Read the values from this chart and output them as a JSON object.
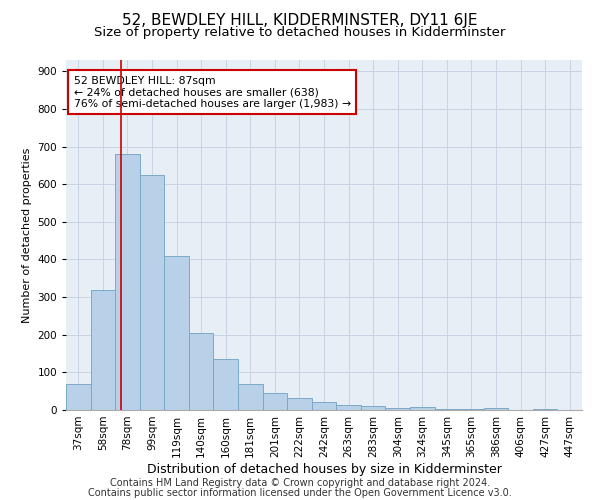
{
  "title1": "52, BEWDLEY HILL, KIDDERMINSTER, DY11 6JE",
  "title2": "Size of property relative to detached houses in Kidderminster",
  "xlabel": "Distribution of detached houses by size in Kidderminster",
  "ylabel": "Number of detached properties",
  "categories": [
    "37sqm",
    "58sqm",
    "78sqm",
    "99sqm",
    "119sqm",
    "140sqm",
    "160sqm",
    "181sqm",
    "201sqm",
    "222sqm",
    "242sqm",
    "263sqm",
    "283sqm",
    "304sqm",
    "324sqm",
    "345sqm",
    "365sqm",
    "386sqm",
    "406sqm",
    "427sqm",
    "447sqm"
  ],
  "values": [
    70,
    320,
    680,
    625,
    410,
    205,
    135,
    68,
    45,
    32,
    20,
    13,
    10,
    5,
    8,
    3,
    3,
    5,
    0,
    3,
    0
  ],
  "bar_color": "#b8d0e8",
  "bar_edge_color": "#7aaac8",
  "annotation_line1": "52 BEWDLEY HILL: 87sqm",
  "annotation_line2": "← 24% of detached houses are smaller (638)",
  "annotation_line3": "76% of semi-detached houses are larger (1,983) →",
  "annotation_box_color": "#ffffff",
  "annotation_box_edge_color": "#cc0000",
  "vline_color": "#cc0000",
  "vline_pos": 1.72,
  "ylim": [
    0,
    930
  ],
  "yticks": [
    0,
    100,
    200,
    300,
    400,
    500,
    600,
    700,
    800,
    900
  ],
  "grid_color": "#c8d4e4",
  "bg_color": "#e8eef6",
  "footnote1": "Contains HM Land Registry data © Crown copyright and database right 2024.",
  "footnote2": "Contains public sector information licensed under the Open Government Licence v3.0.",
  "title1_fontsize": 11,
  "title2_fontsize": 9.5,
  "xlabel_fontsize": 9,
  "ylabel_fontsize": 8,
  "tick_fontsize": 7.5,
  "annotation_fontsize": 7.8,
  "footnote_fontsize": 7
}
